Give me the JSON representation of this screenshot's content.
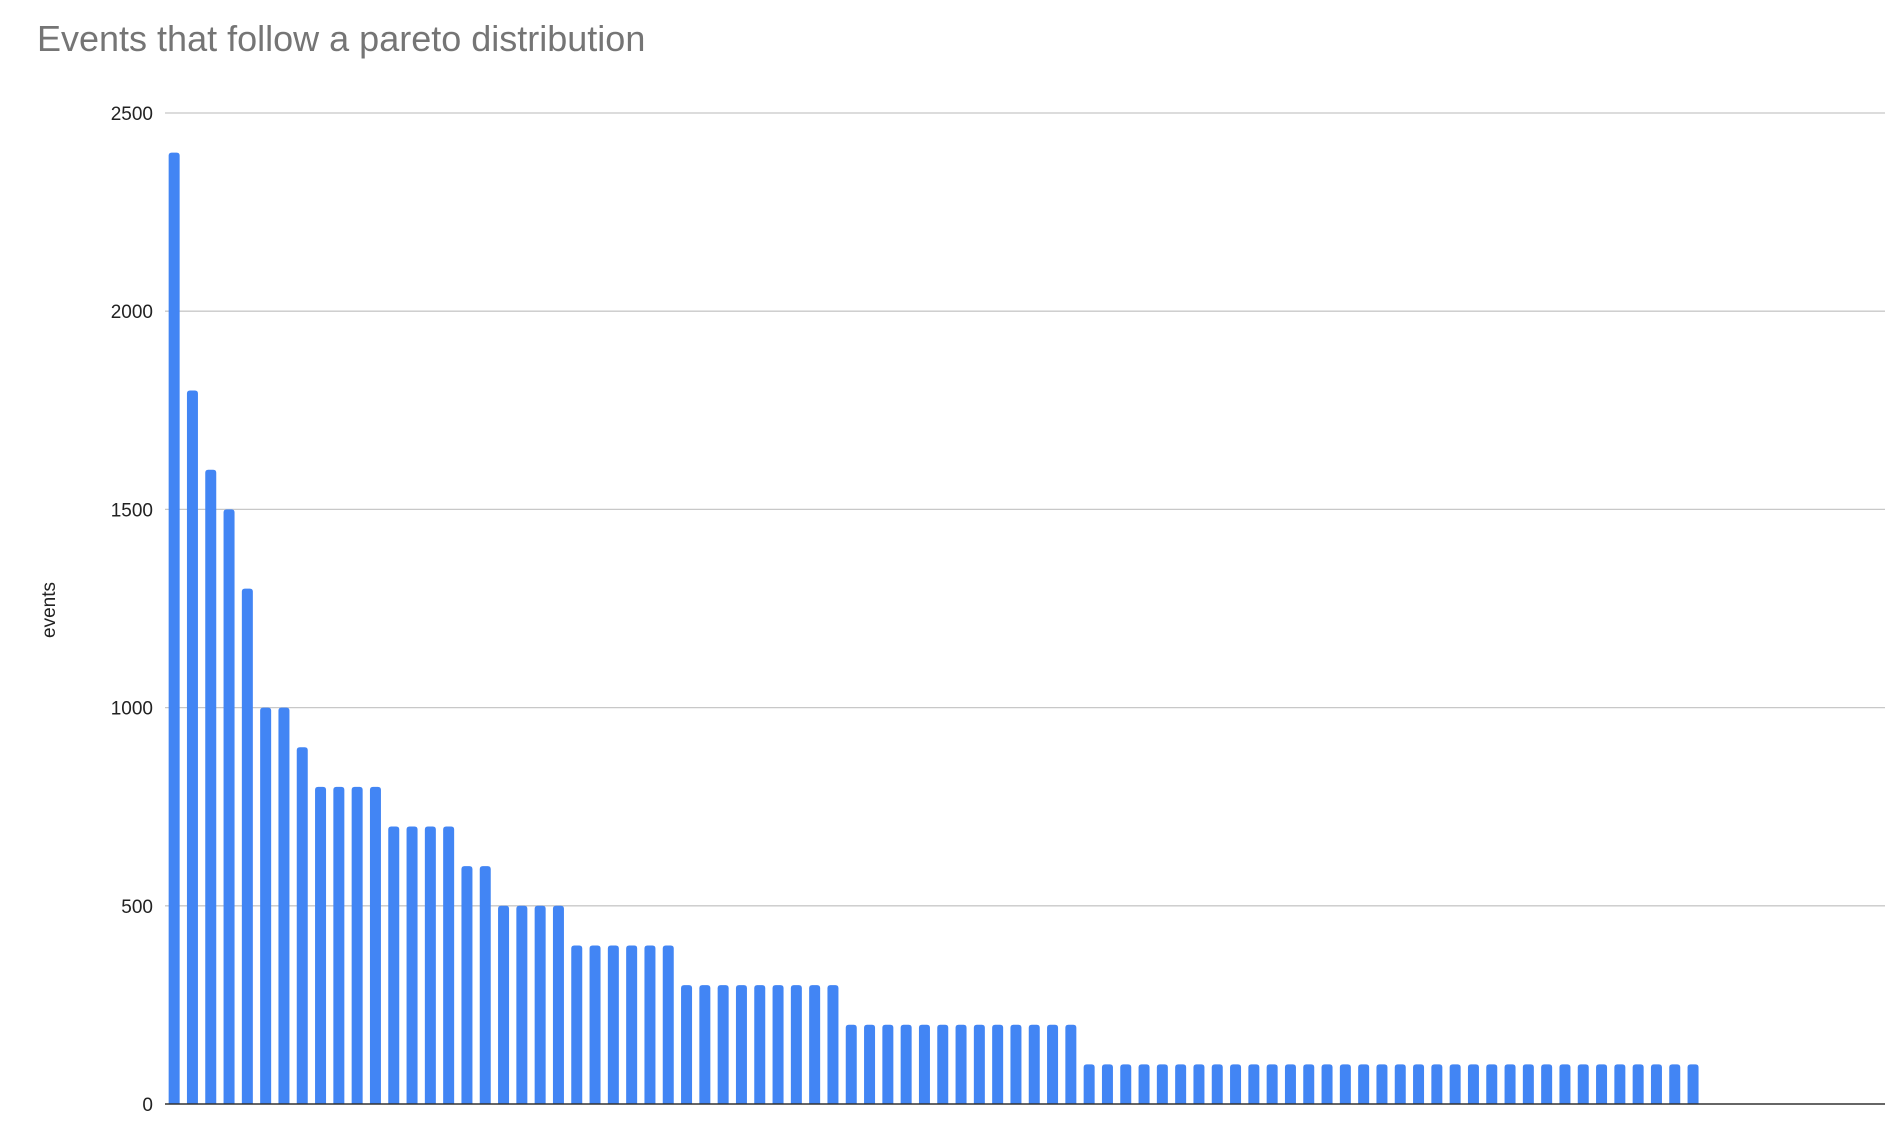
{
  "chart_data": {
    "type": "bar",
    "title": "Events that follow a pareto distribution",
    "xlabel": "",
    "ylabel": "events",
    "ylim": [
      0,
      2500
    ],
    "yticks": [
      0,
      500,
      1000,
      1500,
      2000,
      2500
    ],
    "grid": true,
    "color": "#4285f4",
    "values": [
      2400,
      1800,
      1600,
      1500,
      1300,
      1000,
      1000,
      900,
      800,
      800,
      800,
      800,
      700,
      700,
      700,
      700,
      600,
      600,
      500,
      500,
      500,
      500,
      400,
      400,
      400,
      400,
      400,
      400,
      300,
      300,
      300,
      300,
      300,
      300,
      300,
      300,
      300,
      200,
      200,
      200,
      200,
      200,
      200,
      200,
      200,
      200,
      200,
      200,
      200,
      200,
      100,
      100,
      100,
      100,
      100,
      100,
      100,
      100,
      100,
      100,
      100,
      100,
      100,
      100,
      100,
      100,
      100,
      100,
      100,
      100,
      100,
      100,
      100,
      100,
      100,
      100,
      100,
      100,
      100,
      100,
      100,
      100,
      100,
      100
    ]
  }
}
